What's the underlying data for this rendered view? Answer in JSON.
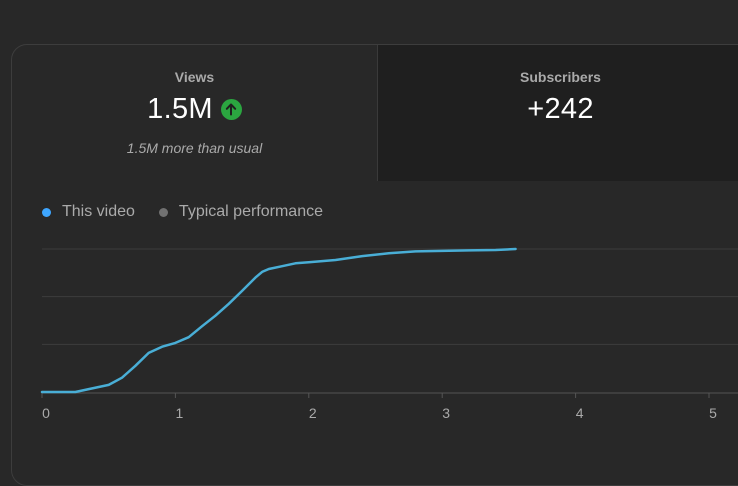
{
  "metrics": {
    "views": {
      "label": "Views",
      "value": "1.5M",
      "trend_icon": "arrow-up-icon",
      "note": "1.5M more than usual"
    },
    "subscribers": {
      "label": "Subscribers",
      "value": "+242"
    }
  },
  "legend": {
    "this_video": "This video",
    "typical": "Typical performance"
  },
  "colors": {
    "this_video": "#3ea6ff",
    "line": "#49aed6",
    "typical": "#717171",
    "trend_up": "#2ba640"
  },
  "chart_data": {
    "type": "line",
    "x_ticks": [
      "0",
      "1",
      "2",
      "3",
      "4",
      "5"
    ],
    "xlim": [
      0,
      5.3
    ],
    "ylim": [
      0,
      3
    ],
    "gridlines_y": [
      1,
      2,
      3
    ],
    "series": [
      {
        "name": "This video",
        "x": [
          0,
          0.25,
          0.35,
          0.5,
          0.6,
          0.7,
          0.8,
          0.9,
          1.0,
          1.1,
          1.2,
          1.3,
          1.4,
          1.5,
          1.6,
          1.65,
          1.7,
          1.8,
          1.9,
          2.0,
          2.2,
          2.4,
          2.6,
          2.8,
          3.0,
          3.2,
          3.4,
          3.55
        ],
        "y": [
          0,
          0,
          0.06,
          0.15,
          0.3,
          0.55,
          0.82,
          0.95,
          1.03,
          1.15,
          1.38,
          1.6,
          1.85,
          2.12,
          2.4,
          2.52,
          2.58,
          2.64,
          2.7,
          2.72,
          2.77,
          2.85,
          2.91,
          2.95,
          2.96,
          2.97,
          2.98,
          3.0
        ]
      }
    ]
  }
}
